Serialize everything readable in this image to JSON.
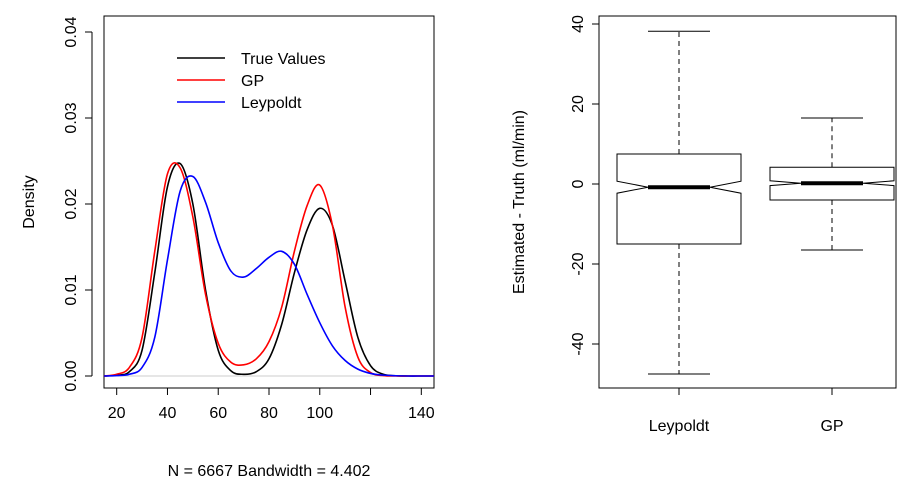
{
  "chart_data": [
    {
      "type": "line",
      "subtype": "density",
      "title": "",
      "xlabel": "N = 6667   Bandwidth = 4.402",
      "ylabel": "Density",
      "xlim": [
        15,
        145
      ],
      "ylim": [
        0,
        0.04
      ],
      "xticks": [
        20,
        40,
        60,
        80,
        100,
        140
      ],
      "yticks": [
        "0.00",
        "0.01",
        "0.02",
        "0.03",
        "0.04"
      ],
      "legend_position": "top-center",
      "series": [
        {
          "name": "True Values",
          "color": "#000000",
          "x": [
            15,
            20,
            25,
            30,
            35,
            40,
            45,
            50,
            55,
            60,
            65,
            70,
            75,
            80,
            85,
            90,
            95,
            100,
            105,
            110,
            115,
            120,
            125,
            130,
            135,
            140,
            145
          ],
          "y": [
            0.0,
            0.0001,
            0.0005,
            0.003,
            0.012,
            0.022,
            0.0247,
            0.02,
            0.01,
            0.003,
            0.0006,
            0.0002,
            0.0005,
            0.002,
            0.006,
            0.012,
            0.017,
            0.0195,
            0.0175,
            0.011,
            0.0045,
            0.0012,
            0.0002,
            3e-05,
            0.0,
            0.0,
            0.0
          ]
        },
        {
          "name": "GP",
          "color": "#ff0000",
          "x": [
            15,
            20,
            25,
            30,
            35,
            40,
            45,
            50,
            55,
            60,
            65,
            70,
            75,
            80,
            85,
            90,
            95,
            100,
            105,
            110,
            115,
            120,
            125,
            130,
            135,
            140,
            145
          ],
          "y": [
            0.0,
            0.0002,
            0.001,
            0.0045,
            0.0145,
            0.0235,
            0.0242,
            0.0185,
            0.0095,
            0.0038,
            0.0016,
            0.0013,
            0.002,
            0.004,
            0.008,
            0.0145,
            0.0198,
            0.0222,
            0.0175,
            0.008,
            0.0022,
            0.0004,
            5e-05,
            0.0,
            0.0,
            0.0,
            0.0
          ]
        },
        {
          "name": "Leypoldt",
          "color": "#0000ff",
          "x": [
            15,
            20,
            25,
            30,
            35,
            40,
            45,
            50,
            55,
            60,
            65,
            70,
            75,
            80,
            85,
            90,
            95,
            100,
            105,
            110,
            115,
            120,
            125,
            130,
            135,
            140,
            145
          ],
          "y": [
            0.0,
            5e-05,
            0.0002,
            0.001,
            0.0045,
            0.0135,
            0.0215,
            0.0232,
            0.0202,
            0.0155,
            0.0122,
            0.0115,
            0.0125,
            0.0138,
            0.0145,
            0.013,
            0.0095,
            0.0062,
            0.0035,
            0.0018,
            0.0008,
            0.0003,
            0.0001,
            3e-05,
            0.0,
            0.0,
            0.0
          ]
        }
      ]
    },
    {
      "type": "boxplot",
      "title": "",
      "xlabel": "",
      "ylabel": "Estimated - Truth (ml/min)",
      "ylim": [
        -51,
        42
      ],
      "yticks": [
        -40,
        -20,
        0,
        20,
        40
      ],
      "categories": [
        "Leypoldt",
        "GP"
      ],
      "notched": true,
      "series": [
        {
          "name": "Leypoldt",
          "whisker_low": -47.5,
          "q1": -15,
          "median": -0.8,
          "q3": 7.5,
          "whisker_high": 38.2,
          "notch": 1.5
        },
        {
          "name": "GP",
          "whisker_low": -16.5,
          "q1": -4,
          "median": 0.2,
          "q3": 4.2,
          "whisker_high": 16.5,
          "notch": 0.6
        }
      ]
    }
  ]
}
